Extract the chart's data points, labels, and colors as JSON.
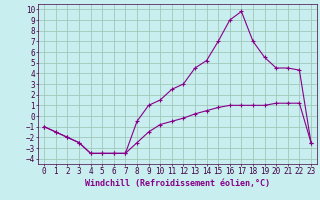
{
  "xlabel": "Windchill (Refroidissement éolien,°C)",
  "background_color": "#c8eef0",
  "grid_color": "#a0c8b8",
  "line_color": "#880088",
  "curve1_x": [
    0,
    1,
    2,
    3,
    4,
    5,
    6,
    7,
    8,
    9,
    10,
    11,
    12,
    13,
    14,
    15,
    16,
    17,
    18,
    19,
    20,
    21,
    22,
    23
  ],
  "curve1_y": [
    -1,
    -1.5,
    -2,
    -2.5,
    -3.5,
    -3.5,
    -3.5,
    -3.5,
    -2.5,
    -1.5,
    -0.8,
    -0.5,
    -0.2,
    0.2,
    0.5,
    0.8,
    1.0,
    1.0,
    1.0,
    1.0,
    1.2,
    1.2,
    1.2,
    -2.5
  ],
  "curve2_x": [
    0,
    1,
    2,
    3,
    4,
    5,
    6,
    7,
    8,
    9,
    10,
    11,
    12,
    13,
    14,
    15,
    16,
    17,
    18,
    19,
    20,
    21,
    22,
    23
  ],
  "curve2_y": [
    -1,
    -1.5,
    -2,
    -2.5,
    -3.5,
    -3.5,
    -3.5,
    -3.5,
    -0.5,
    1.0,
    1.5,
    2.5,
    3.0,
    4.5,
    5.2,
    7.0,
    9.0,
    9.8,
    7.0,
    5.5,
    4.5,
    4.5,
    4.3,
    -2.5
  ],
  "ylim": [
    -4.5,
    10.5
  ],
  "xlim": [
    -0.5,
    23.5
  ],
  "yticks": [
    -4,
    -3,
    -2,
    -1,
    0,
    1,
    2,
    3,
    4,
    5,
    6,
    7,
    8,
    9,
    10
  ],
  "xticks": [
    0,
    1,
    2,
    3,
    4,
    5,
    6,
    7,
    8,
    9,
    10,
    11,
    12,
    13,
    14,
    15,
    16,
    17,
    18,
    19,
    20,
    21,
    22,
    23
  ],
  "tick_fontsize": 5.5,
  "xlabel_fontsize": 6.0,
  "xlabel_color": "#880088",
  "tick_color": "#440044"
}
